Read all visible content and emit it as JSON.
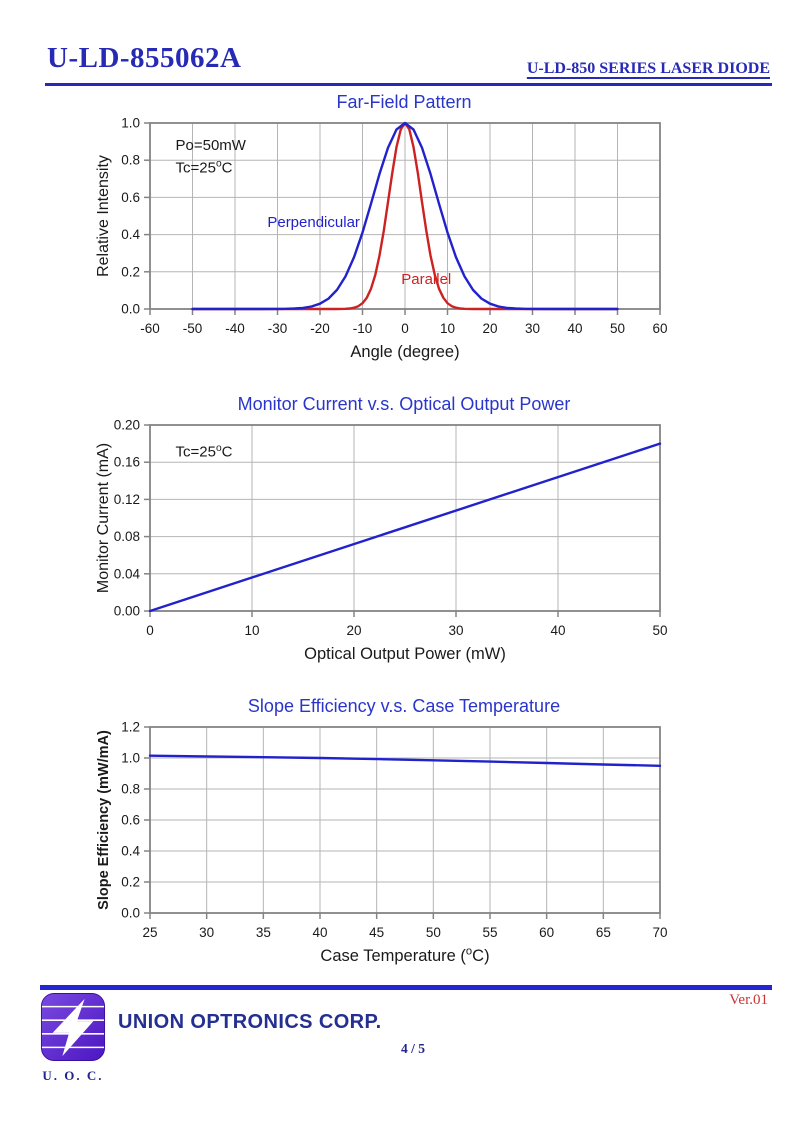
{
  "header": {
    "product_code": "U-LD-855062A",
    "series_label": "U-LD-850 SERIES LASER DIODE"
  },
  "footer": {
    "version": "Ver.01",
    "company_name": "UNION OPTRONICS CORP.",
    "logo_caption": "U. O. C.",
    "page_indicator": "4 / 5"
  },
  "colors": {
    "header_navy": "#262ab4",
    "chart_title_blue": "#2a35cc",
    "curve_blue": "#2222cc",
    "curve_red": "#cc2222",
    "grid_grey": "#b5b5b5",
    "axis_grey": "#848484",
    "tick_text": "#1a1a1a",
    "footer_bar_blue": "#2525d2",
    "version_red": "#cc3333",
    "logo_purple_light": "#7a4ae0",
    "logo_purple_dark": "#4c16c2",
    "page_number_navy": "#22258f"
  },
  "chart_data": [
    {
      "type": "line",
      "title": "Far-Field Pattern",
      "xlabel": "Angle (degree)",
      "ylabel": "Relative Intensity",
      "xlim": [
        -60,
        60
      ],
      "ylim": [
        0,
        1.0
      ],
      "grid": true,
      "legend_position": "inline-labels",
      "xticks": {
        "values": [
          -60,
          -50,
          -40,
          -30,
          -20,
          -10,
          0,
          10,
          20,
          30,
          40,
          50,
          60
        ],
        "labels": [
          "-60",
          "-50",
          "-40",
          "-30",
          "-20",
          "-10",
          "0",
          "10",
          "20",
          "30",
          "40",
          "50",
          "60"
        ]
      },
      "yticks": {
        "values": [
          0,
          0.2,
          0.4,
          0.6,
          0.8,
          1.0
        ],
        "labels": [
          "0.0",
          "0.2",
          "0.4",
          "0.6",
          "0.8",
          "1.0"
        ]
      },
      "annotations": [
        {
          "text": "Po=50mW",
          "x": -54,
          "y": 0.855
        },
        {
          "text": "Tc=25°C",
          "x": -54,
          "y": 0.735
        }
      ],
      "series": [
        {
          "name": "Parallel",
          "color": "#cc2222",
          "label": {
            "x": 5,
            "y": 0.135
          },
          "points": [
            [
              -50,
              0
            ],
            [
              -30,
              0
            ],
            [
              -20,
              0
            ],
            [
              -16,
              0.0002
            ],
            [
              -14,
              0.0011
            ],
            [
              -13,
              0.0029
            ],
            [
              -12,
              0.0068
            ],
            [
              -11,
              0.0152
            ],
            [
              -10,
              0.0313
            ],
            [
              -9,
              0.0605
            ],
            [
              -8,
              0.109
            ],
            [
              -7,
              0.1833
            ],
            [
              -6,
              0.2875
            ],
            [
              -5,
              0.4207
            ],
            [
              -4,
              0.5746
            ],
            [
              -3,
              0.7323
            ],
            [
              -2,
              0.8707
            ],
            [
              -1,
              0.966
            ],
            [
              0,
              1.0
            ],
            [
              1,
              0.966
            ],
            [
              2,
              0.8707
            ],
            [
              3,
              0.7323
            ],
            [
              4,
              0.5746
            ],
            [
              5,
              0.4207
            ],
            [
              6,
              0.2875
            ],
            [
              7,
              0.1833
            ],
            [
              8,
              0.109
            ],
            [
              9,
              0.0605
            ],
            [
              10,
              0.0313
            ],
            [
              11,
              0.0152
            ],
            [
              12,
              0.0068
            ],
            [
              13,
              0.0029
            ],
            [
              14,
              0.0011
            ],
            [
              16,
              0.0002
            ],
            [
              20,
              0
            ],
            [
              30,
              0
            ],
            [
              50,
              0
            ]
          ]
        },
        {
          "name": "Perpendicular",
          "color": "#2222cc",
          "label": {
            "x": -21.5,
            "y": 0.44
          },
          "points": [
            [
              -50,
              0
            ],
            [
              -40,
              0
            ],
            [
              -34,
              0
            ],
            [
              -30,
              0.0003
            ],
            [
              -28,
              0.0009
            ],
            [
              -26,
              0.0025
            ],
            [
              -24,
              0.006
            ],
            [
              -22,
              0.0135
            ],
            [
              -20,
              0.0286
            ],
            [
              -18,
              0.0561
            ],
            [
              -16,
              0.1028
            ],
            [
              -14,
              0.1752
            ],
            [
              -12,
              0.278
            ],
            [
              -10,
              0.4111
            ],
            [
              -8,
              0.5662
            ],
            [
              -6,
              0.7261
            ],
            [
              -4,
              0.8674
            ],
            [
              -2,
              0.9651
            ],
            [
              0,
              1.0
            ],
            [
              2,
              0.9651
            ],
            [
              4,
              0.8674
            ],
            [
              6,
              0.7261
            ],
            [
              8,
              0.5662
            ],
            [
              10,
              0.4111
            ],
            [
              12,
              0.278
            ],
            [
              14,
              0.1752
            ],
            [
              16,
              0.1028
            ],
            [
              18,
              0.0561
            ],
            [
              20,
              0.0286
            ],
            [
              22,
              0.0135
            ],
            [
              24,
              0.006
            ],
            [
              26,
              0.0025
            ],
            [
              28,
              0.0009
            ],
            [
              30,
              0.0003
            ],
            [
              34,
              0
            ],
            [
              40,
              0
            ],
            [
              50,
              0
            ]
          ]
        }
      ]
    },
    {
      "type": "line",
      "title": "Monitor Current v.s. Optical Output Power",
      "xlabel": "Optical Output Power (mW)",
      "ylabel": "Monitor Current (mA)",
      "xlim": [
        0,
        50
      ],
      "ylim": [
        0,
        0.2
      ],
      "grid": true,
      "xticks": {
        "values": [
          0,
          10,
          20,
          30,
          40,
          50
        ],
        "labels": [
          "0",
          "10",
          "20",
          "30",
          "40",
          "50"
        ]
      },
      "yticks": {
        "values": [
          0,
          0.04,
          0.08,
          0.12,
          0.16,
          0.2
        ],
        "labels": [
          "0.00",
          "0.04",
          "0.08",
          "0.12",
          "0.16",
          "0.20"
        ]
      },
      "annotations": [
        {
          "text": "Tc=25°C",
          "x": 2.5,
          "y": 0.166
        }
      ],
      "series": [
        {
          "name": "Monitor Current",
          "color": "#2222cc",
          "points": [
            [
              0,
              0
            ],
            [
              50,
              0.18
            ]
          ]
        }
      ]
    },
    {
      "type": "line",
      "title": "Slope Efficiency v.s. Case Temperature",
      "xlabel": "Case Temperature (°C)",
      "ylabel": "Slope Efficiency (mW/mA)",
      "ylabel_bold": true,
      "xlim": [
        25,
        70
      ],
      "ylim": [
        0,
        1.2
      ],
      "grid": true,
      "xticks": {
        "values": [
          25,
          30,
          35,
          40,
          45,
          50,
          55,
          60,
          65,
          70
        ],
        "labels": [
          "25",
          "30",
          "35",
          "40",
          "45",
          "50",
          "55",
          "60",
          "65",
          "70"
        ]
      },
      "yticks": {
        "values": [
          0,
          0.2,
          0.4,
          0.6,
          0.8,
          1.0,
          1.2
        ],
        "labels": [
          "0.0",
          "0.2",
          "0.4",
          "0.6",
          "0.8",
          "1.0",
          "1.2"
        ]
      },
      "annotations": [],
      "series": [
        {
          "name": "Slope Efficiency",
          "color": "#2222cc",
          "points": [
            [
              25,
              1.015
            ],
            [
              30,
              1.01
            ],
            [
              35,
              1.005
            ],
            [
              40,
              1.0
            ],
            [
              45,
              0.993
            ],
            [
              50,
              0.985
            ],
            [
              55,
              0.977
            ],
            [
              60,
              0.968
            ],
            [
              65,
              0.958
            ],
            [
              70,
              0.95
            ]
          ]
        }
      ]
    }
  ]
}
